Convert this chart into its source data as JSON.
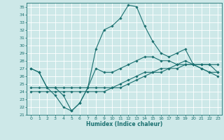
{
  "xlabel": "Humidex (Indice chaleur)",
  "xlim": [
    -0.5,
    23.5
  ],
  "ylim": [
    21,
    35.5
  ],
  "xticks": [
    0,
    1,
    2,
    3,
    4,
    5,
    6,
    7,
    8,
    9,
    10,
    11,
    12,
    13,
    14,
    15,
    16,
    17,
    18,
    19,
    20,
    21,
    22,
    23
  ],
  "yticks": [
    21,
    22,
    23,
    24,
    25,
    26,
    27,
    28,
    29,
    30,
    31,
    32,
    33,
    34,
    35
  ],
  "bg_color": "#cde8e8",
  "grid_color": "#ffffff",
  "line_color": "#1a7070",
  "line1_y": [
    27.0,
    26.5,
    24.5,
    23.5,
    22.0,
    21.5,
    22.5,
    24.5,
    29.5,
    32.0,
    32.5,
    33.5,
    35.2,
    35.0,
    32.5,
    30.5,
    29.0,
    28.5,
    29.0,
    29.5,
    27.5,
    27.0,
    26.5,
    26.5
  ],
  "line2_y": [
    27.0,
    26.5,
    24.5,
    24.5,
    23.5,
    21.5,
    22.5,
    24.5,
    27.0,
    26.5,
    26.5,
    27.0,
    27.5,
    28.0,
    28.5,
    28.5,
    28.0,
    28.0,
    27.5,
    28.0,
    27.5,
    27.0,
    26.5,
    26.0
  ],
  "line3_y": [
    24.5,
    24.5,
    24.5,
    24.5,
    24.5,
    24.5,
    24.5,
    24.5,
    24.5,
    24.5,
    24.5,
    25.0,
    25.5,
    26.0,
    26.5,
    26.5,
    27.0,
    27.0,
    27.5,
    27.5,
    27.5,
    27.5,
    27.5,
    27.5
  ],
  "line4_y": [
    24.0,
    24.0,
    24.0,
    24.0,
    24.0,
    24.0,
    24.0,
    24.0,
    24.0,
    24.0,
    24.5,
    24.5,
    25.0,
    25.5,
    26.0,
    26.5,
    26.5,
    27.0,
    27.0,
    27.5,
    27.5,
    27.5,
    27.5,
    26.5
  ]
}
